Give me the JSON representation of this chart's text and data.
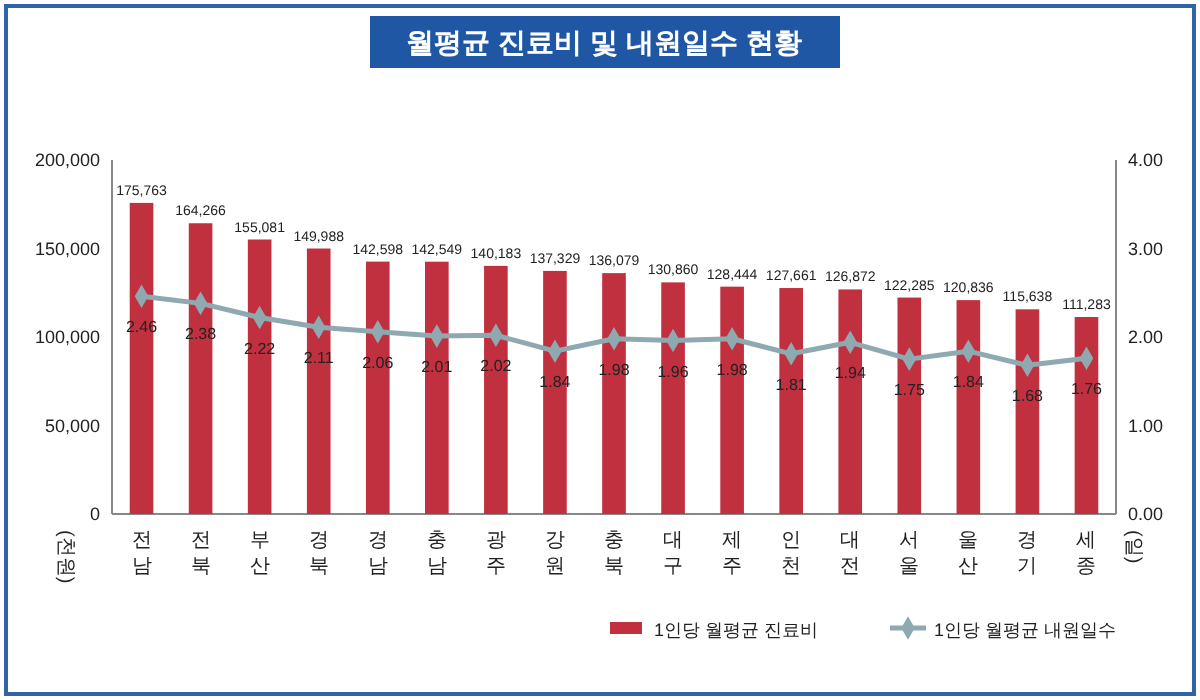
{
  "chart_data": {
    "type": "bar",
    "title": "월평균 진료비 및 내원일수 현황",
    "ylabel": "(천원)",
    "y2label": "(일)",
    "categories": [
      "전남",
      "전북",
      "부산",
      "경북",
      "경남",
      "충남",
      "광주",
      "강원",
      "충북",
      "대구",
      "제주",
      "인천",
      "대전",
      "서울",
      "울산",
      "경기",
      "세종"
    ],
    "series": [
      {
        "name": "1인당 월평균 진료비",
        "color": "#c0303f",
        "values": [
          175763,
          164266,
          155081,
          149988,
          142598,
          142549,
          140183,
          137329,
          136079,
          130860,
          128444,
          127661,
          126872,
          122285,
          120836,
          115638,
          111283
        ],
        "value_labels": [
          "175,763",
          "164,266",
          "155,081",
          "149,988",
          "142,598",
          "142,549",
          "140,183",
          "137,329",
          "136,079",
          "130,860",
          "128,444",
          "127,661",
          "126,872",
          "122,285",
          "120,836",
          "115,638",
          "111,283"
        ]
      },
      {
        "name": "1인당 월평균 내원일수",
        "type": "line",
        "axis": "y2",
        "color": "#8fa9b0",
        "marker": "diamond",
        "values": [
          2.46,
          2.38,
          2.22,
          2.11,
          2.06,
          2.01,
          2.02,
          1.84,
          1.98,
          1.96,
          1.98,
          1.81,
          1.94,
          1.75,
          1.84,
          1.68,
          1.76
        ],
        "value_labels": [
          "2.46",
          "2.38",
          "2.22",
          "2.11",
          "2.06",
          "2.01",
          "2.02",
          "1.84",
          "1.98",
          "1.96",
          "1.98",
          "1.81",
          "1.94",
          "1.75",
          "1.84",
          "1.68",
          "1.76"
        ]
      }
    ],
    "ylim": [
      0,
      200000
    ],
    "yticks": [
      {
        "value": 0,
        "label": "0"
      },
      {
        "value": 50000,
        "label": "50,000"
      },
      {
        "value": 100000,
        "label": "100,000"
      },
      {
        "value": 150000,
        "label": "150,000"
      },
      {
        "value": 200000,
        "label": "200,000"
      }
    ],
    "y2lim": [
      0,
      4
    ],
    "y2ticks": [
      {
        "value": 0,
        "label": "0.00"
      },
      {
        "value": 1,
        "label": "1.00"
      },
      {
        "value": 2,
        "label": "2.00"
      },
      {
        "value": 3,
        "label": "3.00"
      },
      {
        "value": 4,
        "label": "4.00"
      }
    ],
    "legend": "bottom right"
  }
}
